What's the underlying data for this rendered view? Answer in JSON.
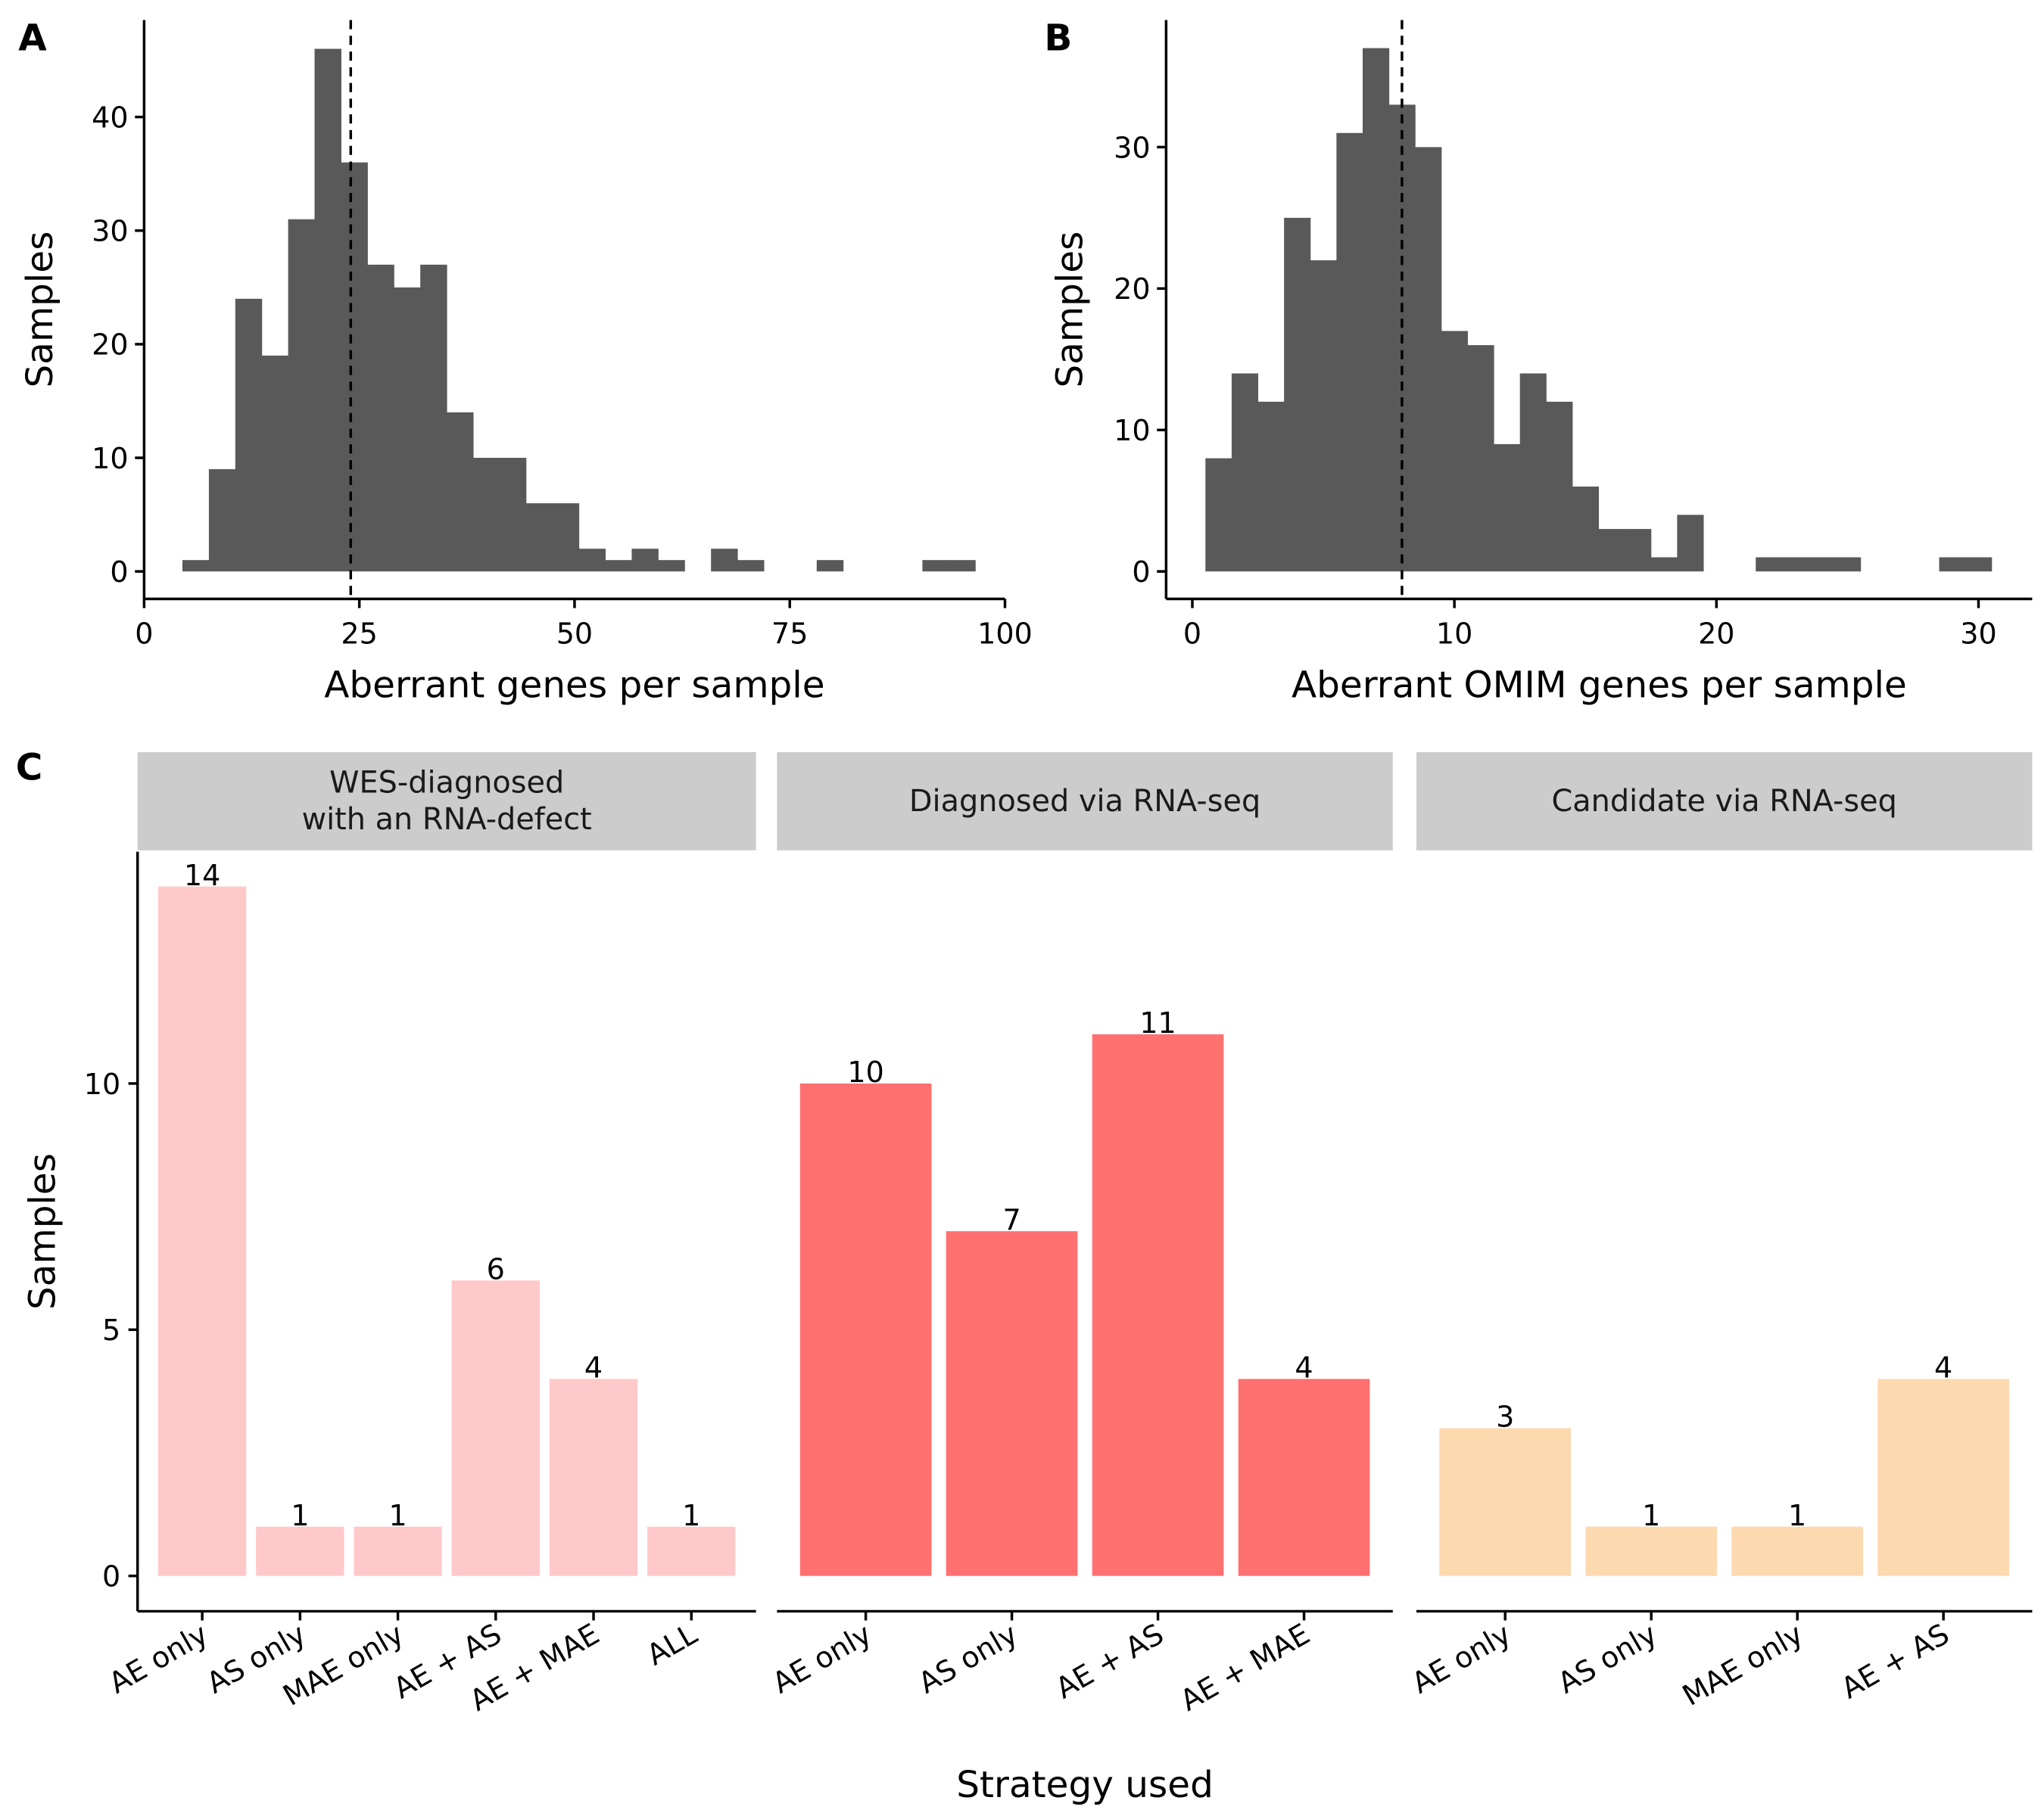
{
  "chart_data": [
    {
      "panel": "A",
      "type": "bar",
      "subtype": "histogram",
      "xlabel": "Aberrant genes per sample",
      "ylabel": "Samples",
      "xlim": [
        0,
        100
      ],
      "ylim": [
        -2,
        48
      ],
      "xticks": [
        "0",
        "25",
        "50",
        "75",
        "100"
      ],
      "yticks": [
        "0",
        "10",
        "20",
        "30",
        "40"
      ],
      "bin_start": 4.45,
      "bin_width": 3.07,
      "counts": [
        1,
        9,
        24,
        19,
        31,
        46,
        36,
        27,
        25,
        27,
        14,
        10,
        10,
        6,
        6,
        2,
        1,
        2,
        1,
        0,
        2,
        1,
        0,
        0,
        1,
        0,
        0,
        0,
        1,
        1
      ],
      "median_line": 24,
      "bar_color": "#595959"
    },
    {
      "panel": "B",
      "type": "bar",
      "subtype": "histogram",
      "xlabel": "Aberrant OMIM genes per sample",
      "ylabel": "Samples",
      "xlim": [
        0,
        31
      ],
      "ylim": [
        -2,
        39
      ],
      "xticks": [
        "0",
        "10",
        "20",
        "30"
      ],
      "yticks": [
        "0",
        "10",
        "20",
        "30"
      ],
      "bin_start": 0.5,
      "bin_width": 1,
      "counts": [
        8,
        14,
        12,
        25,
        22,
        31,
        37,
        33,
        30,
        17,
        16,
        9,
        14,
        12,
        6,
        3,
        3,
        1,
        4,
        0,
        0,
        1,
        1,
        1,
        1,
        0,
        0,
        0,
        1,
        1
      ],
      "median_line": 8,
      "bar_color": "#595959"
    },
    {
      "panel": "C",
      "type": "bar",
      "xlabel": "Strategy used",
      "ylabel": "Samples",
      "ylim": [
        -0.7,
        14.7
      ],
      "yticks": [
        "0",
        "5",
        "10"
      ],
      "facets": [
        {
          "title_lines": [
            "WES-diagnosed",
            "with an RNA-defect"
          ],
          "color": "#FFC9C9",
          "categories": [
            "AE only",
            "AS only",
            "MAE only",
            "AE + AS",
            "AE + MAE",
            "ALL"
          ],
          "values": [
            14,
            1,
            1,
            6,
            4,
            1
          ]
        },
        {
          "title_lines": [
            "Diagnosed via RNA-seq"
          ],
          "color": "#FF7070",
          "categories": [
            "AE only",
            "AS only",
            "AE + AS",
            "AE + MAE"
          ],
          "values": [
            10,
            7,
            11,
            4
          ]
        },
        {
          "title_lines": [
            "Candidate via RNA-seq"
          ],
          "color": "#FDD9B0",
          "categories": [
            "AE only",
            "AS only",
            "MAE only",
            "AE + AS"
          ],
          "values": [
            3,
            1,
            1,
            4
          ]
        }
      ]
    }
  ]
}
